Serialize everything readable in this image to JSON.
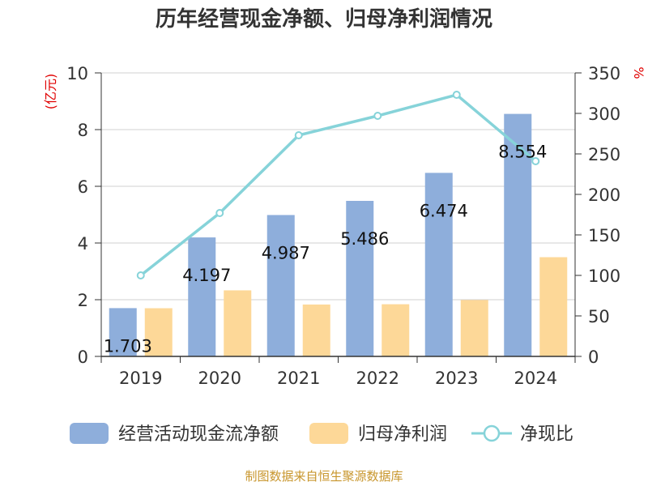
{
  "chart_data": {
    "type": "bar",
    "title": "历年经营现金净额、归母净利润情况",
    "categories": [
      "2019",
      "2020",
      "2021",
      "2022",
      "2023",
      "2024"
    ],
    "y_left": {
      "unit": "(亿元)",
      "ylim": [
        0,
        10
      ],
      "ticks": [
        "0",
        "2",
        "4",
        "6",
        "8",
        "10"
      ]
    },
    "y_right": {
      "unit": "%",
      "ylim": [
        0,
        350
      ],
      "ticks": [
        "0",
        "50",
        "100",
        "150",
        "200",
        "250",
        "300",
        "350"
      ]
    },
    "series": [
      {
        "name": "经营活动现金流净额",
        "type": "bar",
        "axis": "left",
        "color": "#8eaedb",
        "values": [
          1.703,
          4.197,
          4.987,
          5.486,
          6.474,
          8.554
        ],
        "labels": [
          "1.703",
          "4.197",
          "4.987",
          "5.486",
          "6.474",
          "8.554"
        ]
      },
      {
        "name": "归母净利润",
        "type": "bar",
        "axis": "left",
        "color": "#fdd898",
        "values": [
          1.7,
          2.33,
          1.83,
          1.84,
          1.99,
          3.5
        ]
      },
      {
        "name": "净现比",
        "type": "line",
        "axis": "right",
        "color": "#86d3d9",
        "values": [
          100,
          177,
          273,
          297,
          323,
          241
        ]
      }
    ],
    "grid": true,
    "legend_position": "bottom"
  },
  "source_text": "制图数据来自恒生聚源数据库"
}
